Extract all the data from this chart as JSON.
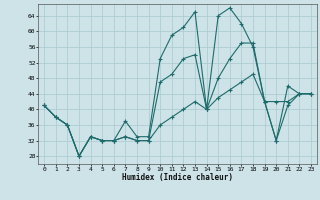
{
  "xlabel": "Humidex (Indice chaleur)",
  "background_color": "#cde3e8",
  "grid_color": "#aecdd3",
  "line_color": "#1e6b6b",
  "xlim": [
    -0.5,
    23.5
  ],
  "ylim": [
    26,
    67
  ],
  "yticks": [
    28,
    32,
    36,
    40,
    44,
    48,
    52,
    56,
    60,
    64
  ],
  "xticks": [
    0,
    1,
    2,
    3,
    4,
    5,
    6,
    7,
    8,
    9,
    10,
    11,
    12,
    13,
    14,
    15,
    16,
    17,
    18,
    19,
    20,
    21,
    22,
    23
  ],
  "series": [
    [
      41,
      38,
      36,
      28,
      33,
      32,
      32,
      37,
      33,
      33,
      53,
      59,
      61,
      65,
      40,
      64,
      66,
      62,
      56,
      42,
      32,
      46,
      44,
      44
    ],
    [
      41,
      38,
      36,
      28,
      33,
      32,
      32,
      33,
      32,
      32,
      47,
      49,
      53,
      54,
      40,
      48,
      53,
      57,
      57,
      42,
      32,
      41,
      44,
      44
    ],
    [
      41,
      38,
      36,
      28,
      33,
      32,
      32,
      33,
      32,
      32,
      36,
      38,
      40,
      42,
      40,
      43,
      45,
      47,
      49,
      42,
      42,
      42,
      44,
      44
    ]
  ]
}
